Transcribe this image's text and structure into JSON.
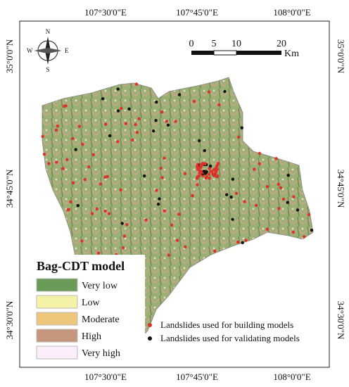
{
  "map": {
    "top_labels": [
      "107°30'0\"E",
      "107°45'0\"E",
      "108°0'0\"E"
    ],
    "bottom_labels": [
      "107°30'0\"E",
      "107°45'0\"E",
      "108°0'0\"E"
    ],
    "left_labels": [
      "35°0'0\"N",
      "34°45'0\"N",
      "34°30'0\"N"
    ],
    "right_labels": [
      "35°0'0\"N",
      "34°45'0\"N",
      "34°30'0\"N"
    ],
    "scale": {
      "ticks": [
        "0",
        "5",
        "10",
        "20"
      ],
      "unit": "Km"
    },
    "compass": {
      "n": "N",
      "e": "E",
      "s": "S",
      "w": "W"
    },
    "legend": {
      "title": "Bag-CDT model",
      "classes": [
        {
          "label": "Very low",
          "color": "#6a9a58"
        },
        {
          "label": "Low",
          "color": "#f3f2a6"
        },
        {
          "label": "Moderate",
          "color": "#edc679"
        },
        {
          "label": "High",
          "color": "#c4977c"
        },
        {
          "label": "Very high",
          "color": "#fbeefa"
        }
      ]
    },
    "points_legend": [
      {
        "label": "Landslides used for building models",
        "color": "#e0302a"
      },
      {
        "label": "Landslides used for validating models",
        "color": "#111111"
      }
    ]
  }
}
